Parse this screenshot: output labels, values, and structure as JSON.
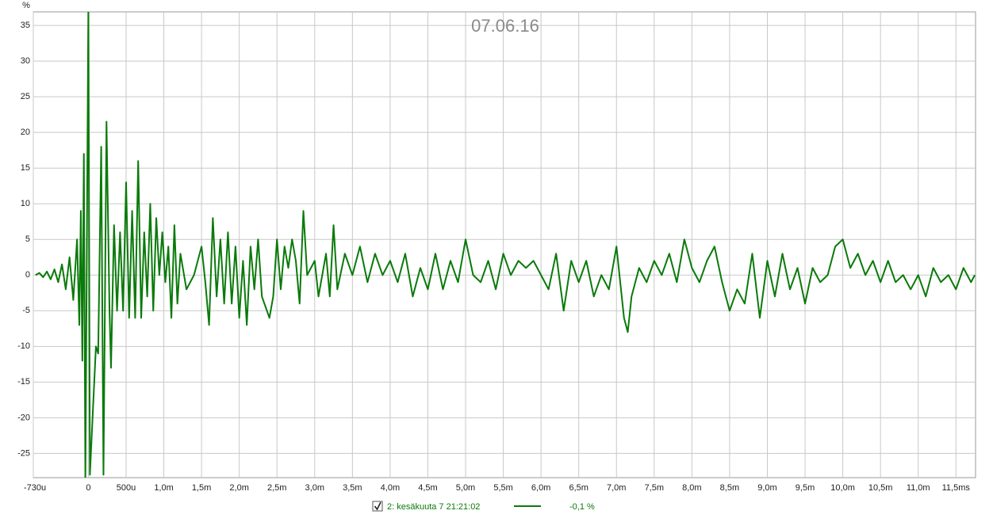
{
  "chart_data": {
    "type": "line",
    "title": "07.06.16",
    "y_label": "%",
    "xlim": [
      -0.73,
      11.76
    ],
    "ylim": [
      -28.4,
      36.9
    ],
    "xticks": [
      {
        "value": -0.73,
        "label": "-730u"
      },
      0,
      {
        "value": 0.5,
        "label": "500u"
      },
      {
        "value": 1.0,
        "label": "1,0m"
      },
      {
        "value": 1.5,
        "label": "1,5m"
      },
      {
        "value": 2.0,
        "label": "2,0m"
      },
      {
        "value": 2.5,
        "label": "2,5m"
      },
      {
        "value": 3.0,
        "label": "3,0m"
      },
      {
        "value": 3.5,
        "label": "3,5m"
      },
      {
        "value": 4.0,
        "label": "4,0m"
      },
      {
        "value": 4.5,
        "label": "4,5m"
      },
      {
        "value": 5.0,
        "label": "5,0m"
      },
      {
        "value": 5.5,
        "label": "5,5m"
      },
      {
        "value": 6.0,
        "label": "6,0m"
      },
      {
        "value": 6.5,
        "label": "6,5m"
      },
      {
        "value": 7.0,
        "label": "7,0m"
      },
      {
        "value": 7.5,
        "label": "7,5m"
      },
      {
        "value": 8.0,
        "label": "8,0m"
      },
      {
        "value": 8.5,
        "label": "8,5m"
      },
      {
        "value": 9.0,
        "label": "9,0m"
      },
      {
        "value": 9.5,
        "label": "9,5m"
      },
      {
        "value": 10.0,
        "label": "10,0m"
      },
      {
        "value": 10.5,
        "label": "10,5m"
      },
      {
        "value": 11.0,
        "label": "11,0m"
      },
      {
        "value": 11.5,
        "label": "11,5ms"
      }
    ],
    "yticks": [
      -25,
      -20,
      -15,
      -10,
      -5,
      0,
      5,
      10,
      15,
      20,
      25,
      30,
      35
    ],
    "grid": true,
    "x": [
      -0.7,
      -0.65,
      -0.6,
      -0.55,
      -0.5,
      -0.45,
      -0.4,
      -0.35,
      -0.3,
      -0.25,
      -0.2,
      -0.15,
      -0.12,
      -0.1,
      -0.08,
      -0.06,
      -0.04,
      0,
      0.02,
      0.06,
      0.1,
      0.13,
      0.17,
      0.2,
      0.24,
      0.28,
      0.3,
      0.34,
      0.38,
      0.42,
      0.46,
      0.5,
      0.54,
      0.58,
      0.62,
      0.66,
      0.7,
      0.74,
      0.78,
      0.82,
      0.86,
      0.9,
      0.94,
      0.98,
      1.02,
      1.06,
      1.1,
      1.14,
      1.18,
      1.22,
      1.3,
      1.4,
      1.5,
      1.55,
      1.6,
      1.65,
      1.7,
      1.75,
      1.8,
      1.85,
      1.9,
      1.95,
      2.0,
      2.05,
      2.1,
      2.15,
      2.2,
      2.25,
      2.3,
      2.4,
      2.45,
      2.5,
      2.55,
      2.6,
      2.65,
      2.7,
      2.75,
      2.8,
      2.85,
      2.9,
      3.0,
      3.05,
      3.15,
      3.2,
      3.25,
      3.3,
      3.4,
      3.5,
      3.6,
      3.7,
      3.8,
      3.9,
      4.0,
      4.1,
      4.2,
      4.3,
      4.4,
      4.5,
      4.6,
      4.7,
      4.8,
      4.9,
      5.0,
      5.1,
      5.2,
      5.3,
      5.4,
      5.5,
      5.6,
      5.7,
      5.8,
      5.9,
      6.0,
      6.1,
      6.2,
      6.3,
      6.4,
      6.5,
      6.6,
      6.7,
      6.8,
      6.9,
      7.0,
      7.1,
      7.15,
      7.2,
      7.3,
      7.4,
      7.5,
      7.6,
      7.7,
      7.8,
      7.9,
      8.0,
      8.1,
      8.2,
      8.3,
      8.4,
      8.5,
      8.6,
      8.7,
      8.8,
      8.9,
      9.0,
      9.1,
      9.2,
      9.3,
      9.4,
      9.5,
      9.6,
      9.7,
      9.8,
      9.9,
      10.0,
      10.1,
      10.2,
      10.3,
      10.4,
      10.5,
      10.6,
      10.7,
      10.8,
      10.9,
      11.0,
      11.1,
      11.2,
      11.3,
      11.4,
      11.5,
      11.6,
      11.7,
      11.75
    ],
    "series": [
      {
        "name": "2: kesäkuuta 7 21:21:02",
        "color": "#0a7a0a",
        "legend_value": "-0,1 %",
        "values": [
          0,
          0.3,
          -0.3,
          0.5,
          -0.6,
          0.8,
          -1,
          1.5,
          -2,
          2.5,
          -3.5,
          5,
          -7,
          9,
          -12,
          17,
          -29,
          38,
          -28,
          -19,
          -10,
          -11,
          18,
          -28,
          21.5,
          -5,
          -13,
          7,
          -5,
          6,
          -5,
          13,
          -6,
          9,
          -6,
          16,
          -6,
          6,
          -3,
          10,
          -5,
          8,
          0,
          6,
          -1,
          4,
          -6,
          7,
          -4,
          3,
          -2,
          0,
          4,
          -1,
          -7,
          8,
          -3,
          5,
          -4,
          6,
          -4,
          4,
          -6,
          2,
          -7,
          4,
          -2,
          5,
          -3,
          -6,
          -3,
          5,
          -2,
          4,
          1,
          5,
          2,
          -4,
          9,
          0,
          2,
          -3,
          3,
          -3,
          7,
          -2,
          3,
          0,
          4,
          -1,
          3,
          0,
          2,
          -1,
          3,
          -3,
          1,
          -2,
          3,
          -2,
          2,
          -1,
          5,
          0,
          -1,
          2,
          -2,
          3,
          0,
          2,
          1,
          2,
          0,
          -2,
          3,
          -5,
          2,
          -1,
          2,
          -3,
          0,
          -2,
          4,
          -6,
          -8,
          -3,
          1,
          -1,
          2,
          0,
          3,
          -1,
          5,
          1,
          -1,
          2,
          4,
          -1,
          -5,
          -2,
          -4,
          3,
          -6,
          2,
          -3,
          3,
          -2,
          1,
          -4,
          1,
          -1,
          0,
          4,
          5,
          1,
          3,
          0,
          2,
          -1,
          2,
          -1,
          0,
          -2,
          0,
          -3,
          1,
          -1,
          0,
          -2,
          1,
          -1,
          0
        ]
      }
    ]
  }
}
